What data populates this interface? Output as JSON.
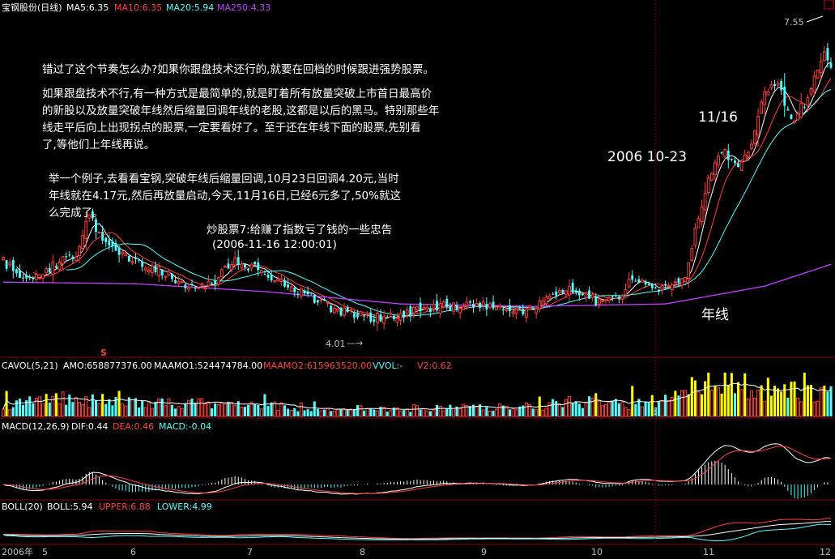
{
  "colors": {
    "background": "#000000",
    "up": "#ff3c3c",
    "down": "#54ffff",
    "ma5": "#ffffff",
    "ma10": "#ff4040",
    "ma20": "#54ffff",
    "ma250": "#c040ff",
    "vol_yellow": "#ffff00",
    "separator": "#8b0000"
  },
  "main_header": {
    "stock_name": "宝钢股份(日线)",
    "ma5": "MA5:6.35",
    "ma10": "MA10:6.35",
    "ma20": "MA20:5.94",
    "ma250": "MA250:4.33"
  },
  "annotations": {
    "line1": "错过了这个节奏怎么办?如果你跟盘技术还行的,就要在回档的时候跟进强势股票。",
    "para2": [
      "如果跟盘技术不行,有一种方式是最简单的,就是盯着所有放量突破上市首日最高价",
      "的新股以及放量突破年线然后缩量回调年线的老股,这都是以后的黑马。特别那些年",
      "线走平后向上出现拐点的股票,一定要看好了。至于还在年线下面的股票,先别看",
      "了,等他们上年线再说。"
    ],
    "para3": [
      "举一个例子,去看看宝钢,突破年线后缩量回调,10月23日回调4.20元,当时",
      "年线就在4.17元,然后再放量启动,今天,11月16日,已经6元多了,50%就这",
      "么完成了。"
    ],
    "source_title": "炒股票7:给赚了指数亏了钱的一些忠告",
    "source_date": "(2006-11-16 12:00:01)",
    "date_label_1": "2006 10-23",
    "date_label_2": "11/16",
    "ma250_label": "年线",
    "high_label": "7.55",
    "low_label": "4.01",
    "arrow_glyph": "—→",
    "corner_box": "口",
    "s_marker": "S"
  },
  "vol_header": {
    "name": "CAVOL(5,21)",
    "amo": "AMO:658877376.00",
    "maamo1": "MAAMO1:524474784.00",
    "maamo2": "MAAMO2:615963520.00",
    "vvol": "VVOL:-",
    "v2": "V2:0.62"
  },
  "macd_header": {
    "name": "MACD(12,26,9)",
    "dif": "DIF:0.44",
    "dea": "DEA:0.46",
    "macd": "MACD:-0.04"
  },
  "boll_header": {
    "name": "BOLL(20)",
    "boll": "BOLL:5.94",
    "upper": "UPPER:6.88",
    "lower": "LOWER:4.99"
  },
  "x_axis": {
    "year_label": "2006年",
    "months": [
      "5",
      "6",
      "7",
      "8",
      "9",
      "10",
      "11",
      "12"
    ]
  },
  "chart_data": [
    {
      "type": "candlestick",
      "title": "宝钢股份(日线)",
      "ylim": [
        3.7,
        7.85
      ],
      "high_marker": 7.55,
      "low_marker": 4.01,
      "close_keypoints": [
        [
          0,
          4.85
        ],
        [
          8,
          4.62
        ],
        [
          14,
          4.78
        ],
        [
          22,
          4.95
        ],
        [
          26,
          5.45
        ],
        [
          30,
          5.1
        ],
        [
          38,
          4.88
        ],
        [
          46,
          4.78
        ],
        [
          52,
          4.62
        ],
        [
          58,
          4.5
        ],
        [
          62,
          4.55
        ],
        [
          70,
          4.85
        ],
        [
          78,
          4.75
        ],
        [
          86,
          4.55
        ],
        [
          92,
          4.45
        ],
        [
          100,
          4.25
        ],
        [
          108,
          4.18
        ],
        [
          116,
          4.15
        ],
        [
          122,
          4.22
        ],
        [
          130,
          4.28
        ],
        [
          138,
          4.32
        ],
        [
          146,
          4.3
        ],
        [
          152,
          4.28
        ],
        [
          158,
          4.25
        ],
        [
          164,
          4.36
        ],
        [
          170,
          4.55
        ],
        [
          174,
          4.45
        ],
        [
          180,
          4.35
        ],
        [
          186,
          4.42
        ],
        [
          190,
          4.65
        ],
        [
          196,
          4.5
        ],
        [
          202,
          4.55
        ],
        [
          206,
          4.7
        ],
        [
          210,
          5.4
        ],
        [
          214,
          6.0
        ],
        [
          218,
          6.2
        ],
        [
          222,
          6.0
        ],
        [
          226,
          6.3
        ],
        [
          230,
          6.95
        ],
        [
          234,
          7.05
        ],
        [
          238,
          6.6
        ],
        [
          242,
          6.8
        ],
        [
          246,
          7.2
        ],
        [
          248,
          7.42
        ],
        [
          250,
          7.25
        ]
      ],
      "ma250_keypoints": [
        [
          0,
          4.6
        ],
        [
          40,
          4.58
        ],
        [
          80,
          4.48
        ],
        [
          120,
          4.33
        ],
        [
          160,
          4.3
        ],
        [
          200,
          4.33
        ],
        [
          230,
          4.55
        ],
        [
          250,
          4.82
        ]
      ]
    },
    {
      "type": "bar",
      "title": "CAVOL(5,21)",
      "values_keypoints": [
        [
          0,
          0.25
        ],
        [
          20,
          0.45
        ],
        [
          40,
          0.3
        ],
        [
          70,
          0.3
        ],
        [
          100,
          0.18
        ],
        [
          130,
          0.2
        ],
        [
          160,
          0.22
        ],
        [
          170,
          0.35
        ],
        [
          190,
          0.3
        ],
        [
          200,
          0.4
        ],
        [
          206,
          0.55
        ],
        [
          212,
          0.85
        ],
        [
          220,
          0.75
        ],
        [
          230,
          0.65
        ],
        [
          240,
          0.6
        ],
        [
          250,
          0.55
        ]
      ]
    },
    {
      "type": "line",
      "title": "MACD(12,26,9)",
      "series": [
        {
          "name": "DIF",
          "values": "derived"
        },
        {
          "name": "DEA",
          "values": "derived"
        },
        {
          "name": "MACD",
          "values": "derived"
        }
      ]
    },
    {
      "type": "line",
      "title": "BOLL(20)",
      "series": [
        {
          "name": "UPPER",
          "values": "derived"
        },
        {
          "name": "BOLL",
          "values": "derived"
        },
        {
          "name": "LOWER",
          "values": "derived"
        }
      ]
    }
  ]
}
